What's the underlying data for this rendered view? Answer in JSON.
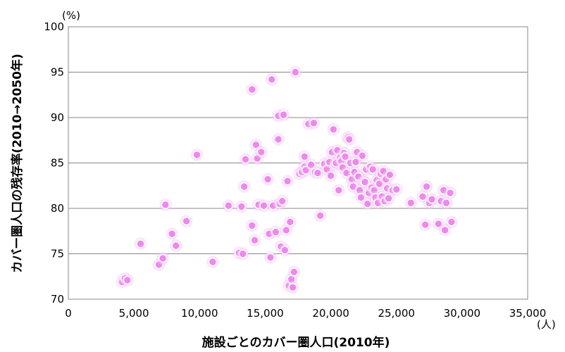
{
  "chart_data": {
    "type": "scatter",
    "title": "",
    "xlabel": "施設ごとのカバー圏人口(2010年)",
    "ylabel": "カバー圏人口の残存率(2010→2050年)",
    "x_unit": "(人)",
    "y_unit": "(%)",
    "xlim": [
      0,
      35000
    ],
    "ylim": [
      70,
      100
    ],
    "x_ticks": [
      0,
      5000,
      10000,
      15000,
      20000,
      25000,
      30000,
      35000
    ],
    "x_tick_labels": [
      "0",
      "5,000",
      "10,000",
      "15,000",
      "20,000",
      "25,000",
      "30,000",
      "35,000"
    ],
    "y_ticks": [
      70,
      75,
      80,
      85,
      90,
      95,
      100
    ],
    "y_tick_labels": [
      "70",
      "75",
      "80",
      "85",
      "90",
      "95",
      "100"
    ],
    "grid": "horizontal",
    "legend": "none",
    "marker_color": "#ee88ee",
    "marker_glow_color": "#f7c4f7",
    "series": [
      {
        "x": [
          4100,
          4300,
          4500,
          5500,
          6900,
          7200,
          7400,
          7900,
          8200,
          9000,
          9800,
          11000,
          12200,
          13000,
          13200,
          13300,
          13400,
          13500,
          14000,
          14000,
          14200,
          14300,
          14400,
          14500,
          14700,
          14900,
          15200,
          15300,
          15400,
          15500,
          15600,
          15800,
          16000,
          16000,
          16100,
          16200,
          16300,
          16400,
          16500,
          16600,
          16700,
          16800,
          16900,
          17000,
          17100,
          17200,
          17300,
          17600,
          17800,
          18000,
          18000,
          18100,
          18300,
          18500,
          18700,
          18800,
          19000,
          19200,
          19500,
          19700,
          19900,
          20000,
          20100,
          20200,
          20300,
          20400,
          20500,
          20600,
          20700,
          20800,
          20900,
          21000,
          21100,
          21200,
          21300,
          21400,
          21500,
          21600,
          21700,
          21800,
          21900,
          22000,
          22100,
          22200,
          22300,
          22400,
          22500,
          22600,
          22700,
          22800,
          22900,
          23000,
          23100,
          23200,
          23300,
          23400,
          23500,
          23600,
          23700,
          23800,
          23900,
          24000,
          24100,
          24200,
          24300,
          24400,
          24500,
          24700,
          25000,
          26100,
          27000,
          27200,
          27300,
          27500,
          27700,
          28200,
          28400,
          28600,
          28700,
          28800,
          29100,
          29200
        ],
        "y": [
          71.9,
          72.3,
          72.1,
          76.1,
          73.8,
          74.5,
          80.4,
          77.2,
          75.9,
          78.6,
          85.9,
          74.1,
          80.3,
          75.1,
          80.2,
          75.0,
          82.4,
          85.4,
          93.1,
          78.1,
          76.5,
          87.0,
          85.5,
          80.4,
          86.2,
          80.3,
          83.2,
          77.2,
          74.6,
          94.2,
          80.3,
          77.4,
          90.2,
          87.6,
          80.5,
          75.8,
          80.8,
          90.3,
          75.4,
          77.6,
          83.0,
          71.5,
          78.5,
          72.2,
          71.3,
          73.0,
          95.0,
          83.8,
          84.0,
          85.7,
          84.6,
          84.2,
          89.3,
          84.8,
          89.4,
          84.0,
          83.9,
          79.2,
          84.9,
          84.3,
          85.1,
          83.6,
          86.2,
          88.7,
          84.8,
          85.0,
          86.4,
          82.0,
          85.6,
          85.2,
          84.5,
          86.1,
          85.7,
          83.9,
          87.8,
          87.6,
          85.0,
          83.2,
          82.4,
          84.0,
          85.1,
          86.2,
          83.5,
          82.0,
          81.2,
          85.8,
          83.0,
          82.9,
          84.3,
          80.5,
          81.7,
          84.6,
          82.3,
          84.3,
          82.0,
          81.2,
          83.1,
          80.6,
          82.7,
          83.8,
          81.3,
          84.1,
          80.8,
          83.2,
          82.2,
          81.1,
          83.7,
          82.0,
          82.1,
          80.6,
          81.3,
          78.2,
          82.4,
          80.6,
          81.0,
          78.3,
          80.8,
          82.0,
          77.6,
          80.6,
          81.7,
          78.5
        ]
      }
    ]
  }
}
